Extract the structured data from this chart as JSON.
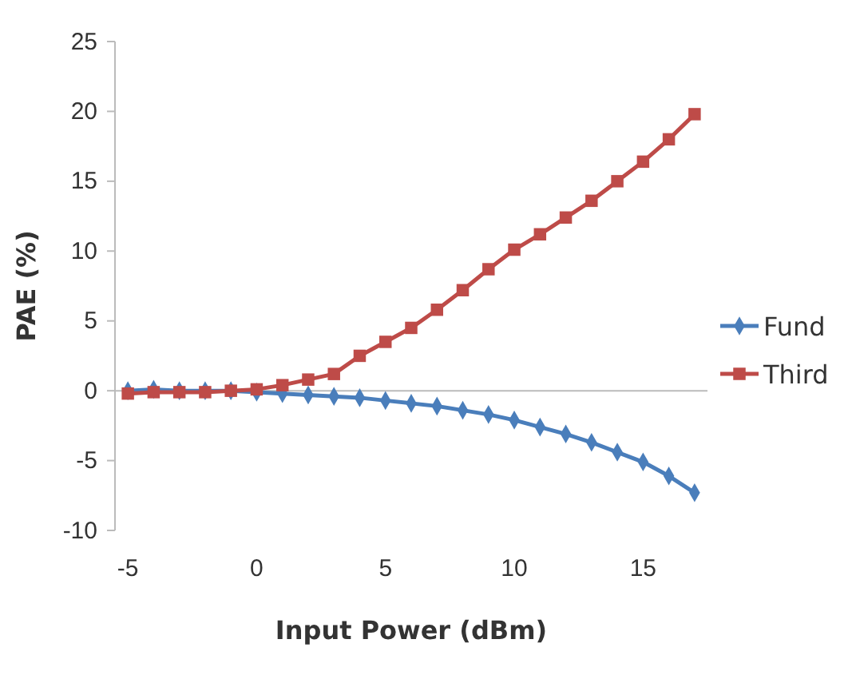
{
  "chart_data": {
    "type": "line",
    "xlabel": "Input Power (dBm)",
    "ylabel": "PAE (%)",
    "x": [
      -5,
      -4,
      -3,
      -2,
      -1,
      0,
      1,
      2,
      3,
      4,
      5,
      6,
      7,
      8,
      9,
      10,
      11,
      12,
      13,
      14,
      15,
      16,
      17
    ],
    "series": [
      {
        "name": "Fund",
        "color": "#4a7ebb",
        "marker": "diamond",
        "values": [
          0,
          0.1,
          0,
          0,
          0,
          -0.1,
          -0.2,
          -0.3,
          -0.4,
          -0.5,
          -0.7,
          -0.9,
          -1.1,
          -1.4,
          -1.7,
          -2.1,
          -2.6,
          -3.1,
          -3.7,
          -4.4,
          -5.1,
          -6.1,
          -7.3
        ]
      },
      {
        "name": "Third",
        "color": "#be4b48",
        "marker": "square",
        "values": [
          -0.2,
          -0.1,
          -0.1,
          -0.1,
          0,
          0.1,
          0.4,
          0.8,
          1.2,
          2.5,
          3.5,
          4.5,
          5.8,
          7.2,
          8.7,
          10.1,
          11.2,
          12.4,
          13.6,
          15.0,
          16.4,
          18.0,
          19.8
        ]
      }
    ],
    "xlim": [
      -5.5,
      17.5
    ],
    "xticks": [
      -5,
      0,
      5,
      10,
      15
    ],
    "ylim": [
      -10,
      25
    ],
    "yticks": [
      -10,
      -5,
      0,
      5,
      10,
      15,
      20,
      25
    ],
    "legend": "right",
    "line_style": "solid"
  }
}
